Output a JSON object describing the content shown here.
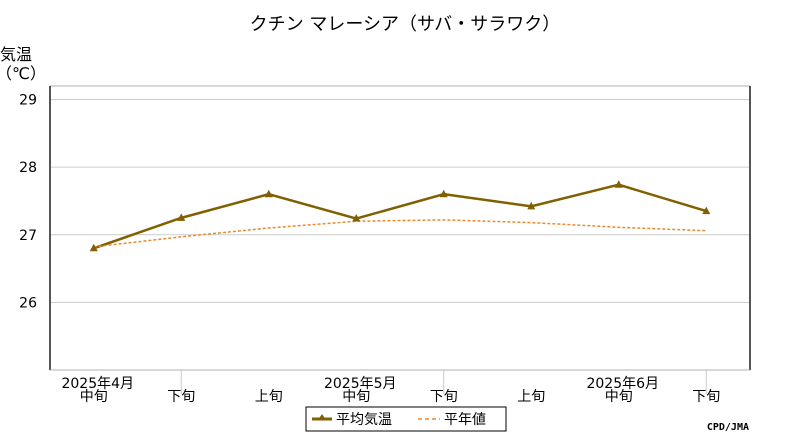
{
  "chart_data": {
    "type": "line",
    "title": "クチン マレーシア（サバ・サラワク）",
    "ylabel_line1": "気温",
    "ylabel_line2": "（℃）",
    "ylim": [
      25.0,
      29.2
    ],
    "yticks": [
      26,
      27,
      28,
      29
    ],
    "grid": true,
    "x_slots": [
      "中旬",
      "下旬",
      "上旬",
      "中旬",
      "下旬",
      "上旬",
      "中旬",
      "下旬"
    ],
    "x_month_labels": [
      {
        "label": "2025年4月",
        "slot": 0
      },
      {
        "label": "2025年5月",
        "slot": 3
      },
      {
        "label": "2025年6月",
        "slot": 6
      }
    ],
    "x_separators": [
      1.5,
      4.5,
      7.5
    ],
    "series": [
      {
        "name": "平均気温",
        "color": "#806000",
        "style": "solid-marker",
        "values": [
          26.8,
          27.25,
          27.6,
          27.24,
          27.6,
          27.42,
          27.74,
          27.35
        ]
      },
      {
        "name": "平年値",
        "color": "#e88a2e",
        "style": "dashed",
        "values": [
          26.82,
          26.97,
          27.1,
          27.2,
          27.22,
          27.18,
          27.11,
          27.06
        ]
      }
    ],
    "legend_position": "bottom",
    "credit": "CPD/JMA"
  }
}
